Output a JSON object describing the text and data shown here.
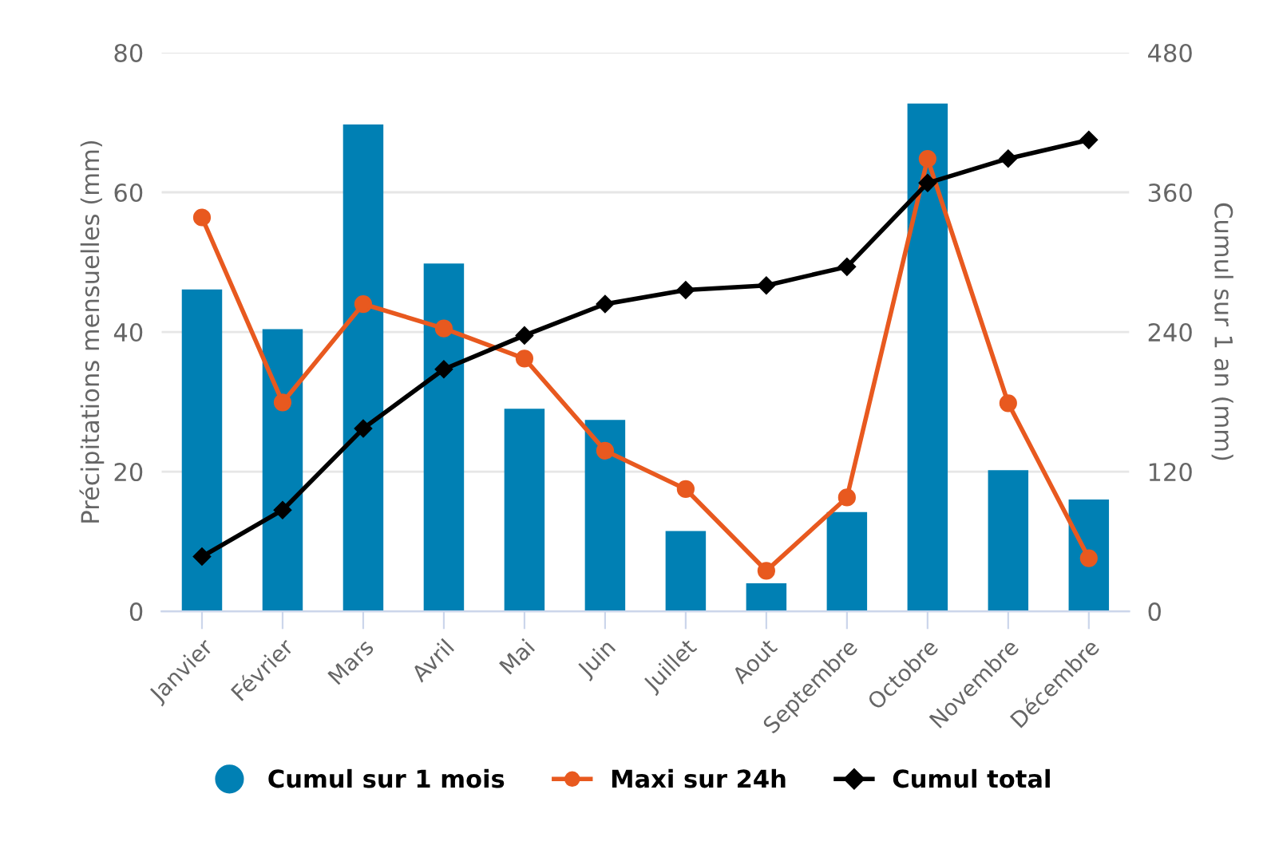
{
  "chart_data": {
    "type": "bar",
    "ylabel": "Précipitations mensuelles (mm)",
    "y2label": "Cumul sur 1 an (mm)",
    "categories": [
      "Janvier",
      "Février",
      "Mars",
      "Avril",
      "Mai",
      "Juin",
      "Juillet",
      "Aout",
      "Septembre",
      "Octobre",
      "Novembre",
      "Décembre"
    ],
    "series": [
      {
        "name": "Cumul sur 1 mois",
        "color": "#0080b4",
        "values": [
          46.1,
          40.4,
          69.7,
          49.8,
          29.0,
          27.4,
          11.5,
          4.0,
          14.2,
          72.7,
          20.2,
          16.0
        ]
      },
      {
        "name": "Maxi sur 24h",
        "type": "line",
        "color": "#e8591f",
        "marker": "circle",
        "values": [
          56.4,
          29.9,
          44.0,
          40.5,
          36.2,
          23.0,
          17.5,
          5.8,
          16.3,
          64.8,
          29.8,
          7.6
        ]
      },
      {
        "name": "Cumul total",
        "type": "line",
        "color": "#000000",
        "marker": "diamond",
        "axis": "y2",
        "values": [
          47,
          87,
          157,
          208,
          237,
          264,
          276,
          280,
          296,
          368,
          389,
          405
        ]
      }
    ],
    "ylim": [
      0,
      80
    ],
    "yticks": [
      0,
      20,
      40,
      60,
      80
    ],
    "y2lim": [
      0,
      480
    ],
    "y2ticks": [
      0,
      120,
      240,
      360,
      480
    ],
    "grid": "y",
    "legend": "bottom"
  }
}
